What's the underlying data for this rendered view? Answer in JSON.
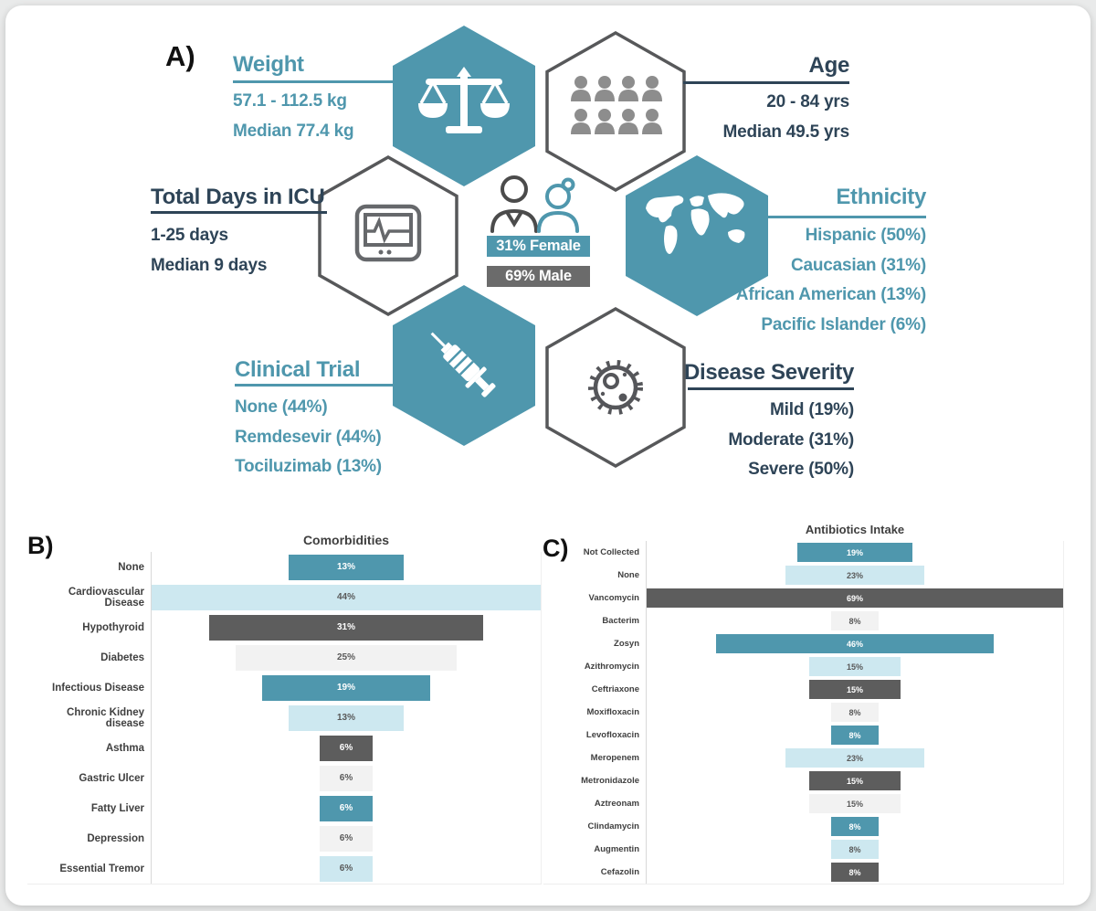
{
  "colors": {
    "teal": "#4f97ad",
    "light_blue": "#cde8f0",
    "dark_gray": "#5d5d5d",
    "light_gray": "#f2f2f2",
    "navy": "#2e4457",
    "male_bar_gray": "#6b6b6b",
    "bar_text_dark": "#595959"
  },
  "panel_a": {
    "label": "A)",
    "gender": {
      "female": "31% Female",
      "male": "69% Male"
    },
    "stats": [
      {
        "title": "Weight",
        "lines": [
          "57.1 - 112.5 kg",
          "Median 77.4 kg"
        ],
        "icon": "scales-icon"
      },
      {
        "title": "Age",
        "lines": [
          "20 - 84 yrs",
          "Median 49.5 yrs"
        ],
        "icon": "people-icon"
      },
      {
        "title": "Total Days in ICU",
        "lines": [
          "1-25 days",
          "Median 9 days"
        ],
        "icon": "ecg-monitor-icon"
      },
      {
        "title": "Ethnicity",
        "lines": [
          "Hispanic (50%)",
          "Caucasian (31%)",
          "African American (13%)",
          "Pacific Islander (6%)"
        ],
        "icon": "world-map-icon"
      },
      {
        "title": "Clinical Trial",
        "lines": [
          "None (44%)",
          "Remdesevir (44%)",
          "Tociluzimab (13%)"
        ],
        "icon": "syringe-icon"
      },
      {
        "title": "Disease Severity",
        "lines": [
          "Mild (19%)",
          "Moderate (31%)",
          "Severe (50%)"
        ],
        "icon": "virus-icon"
      }
    ]
  },
  "chart_data": [
    {
      "type": "bar",
      "variant": "centered-funnel",
      "panel_label": "B)",
      "title": "Comorbidities",
      "unit": "%",
      "legend": "none",
      "grid": "off",
      "categories": [
        "None",
        "Cardiovascular Disease",
        "Hypothyroid",
        "Diabetes",
        "Infectious Disease",
        "Chronic Kidney disease",
        "Asthma",
        "Gastric Ulcer",
        "Fatty Liver",
        "Depression",
        "Essential Tremor"
      ],
      "values": [
        13,
        44,
        31,
        25,
        19,
        13,
        6,
        6,
        6,
        6,
        6
      ],
      "max_value": 44,
      "bar_colors": [
        "teal",
        "light_blue",
        "dark_gray",
        "light_gray",
        "teal",
        "light_blue",
        "dark_gray",
        "light_gray",
        "teal",
        "light_gray",
        "light_blue"
      ]
    },
    {
      "type": "bar",
      "variant": "centered-funnel",
      "panel_label": "C)",
      "title": "Antibiotics Intake",
      "unit": "%",
      "legend": "none",
      "grid": "off",
      "categories": [
        "Not Collected",
        "None",
        "Vancomycin",
        "Bacterim",
        "Zosyn",
        "Azithromycin",
        "Ceftriaxone",
        "Moxifloxacin",
        "Levofloxacin",
        "Meropenem",
        "Metronidazole",
        "Aztreonam",
        "Clindamycin",
        "Augmentin",
        "Cefazolin"
      ],
      "values": [
        19,
        23,
        69,
        8,
        46,
        15,
        15,
        8,
        8,
        23,
        15,
        15,
        8,
        8,
        8
      ],
      "max_value": 69,
      "bar_colors": [
        "teal",
        "light_blue",
        "dark_gray",
        "light_gray",
        "teal",
        "light_blue",
        "dark_gray",
        "light_gray",
        "teal",
        "light_blue",
        "dark_gray",
        "light_gray",
        "teal",
        "light_blue",
        "dark_gray"
      ]
    }
  ]
}
